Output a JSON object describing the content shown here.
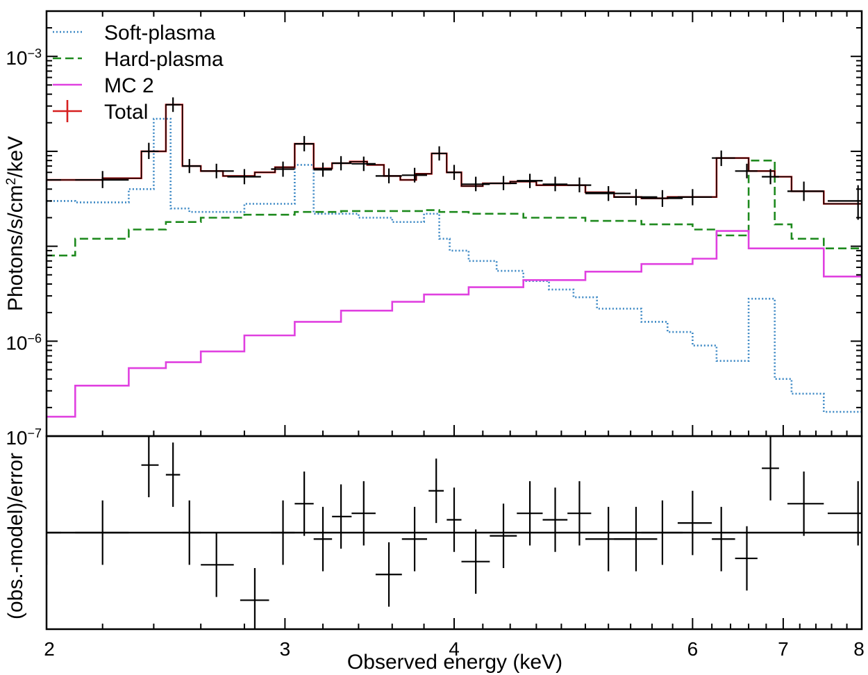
{
  "chart_data": {
    "type": "line",
    "xlabel": "Observed energy (keV)",
    "x_ticks": [
      2,
      3,
      4,
      6,
      7,
      8
    ],
    "x_tick_labels": [
      "2",
      "3",
      "4",
      "6",
      "7",
      "8"
    ],
    "xlim": [
      2,
      8
    ],
    "top_panel": {
      "ylabel_prefix": "Photons/s/cm",
      "ylabel_sup": "2",
      "ylabel_suffix": "/keV",
      "yscale": "log",
      "ylim": [
        1e-07,
        0.003
      ],
      "y_ticks": [
        {
          "value": 0.001,
          "base": "10",
          "exp": "−3"
        },
        {
          "value": 1e-06,
          "base": "10",
          "exp": "−6"
        },
        {
          "value": 1e-07,
          "base": "10",
          "exp": "−7"
        }
      ],
      "legend": [
        {
          "label": "Soft-plasma",
          "key": "soft"
        },
        {
          "label": "Hard-plasma",
          "key": "hard"
        },
        {
          "label": "MC 2",
          "key": "mc"
        },
        {
          "label": "Total",
          "key": "total"
        }
      ],
      "series": [
        {
          "name": "Soft-plasma",
          "color": "#3a87c4",
          "style": "dotted",
          "steps": [
            [
              2.0,
              2.1,
              3e-05
            ],
            [
              2.1,
              2.3,
              2.9e-05
            ],
            [
              2.3,
              2.4,
              4e-05
            ],
            [
              2.4,
              2.47,
              0.00022
            ],
            [
              2.47,
              2.55,
              2.5e-05
            ],
            [
              2.55,
              2.8,
              2.3e-05
            ],
            [
              2.8,
              3.05,
              2.8e-05
            ],
            [
              3.05,
              3.15,
              7.2e-05
            ],
            [
              3.15,
              3.4,
              2.2e-05
            ],
            [
              3.4,
              3.6,
              2e-05
            ],
            [
              3.6,
              3.8,
              1.8e-05
            ],
            [
              3.8,
              3.9,
              2.2e-05
            ],
            [
              3.9,
              3.97,
              1.2e-05
            ],
            [
              3.97,
              4.1,
              9e-06
            ],
            [
              4.1,
              4.3,
              7e-06
            ],
            [
              4.3,
              4.5,
              5.5e-06
            ],
            [
              4.5,
              4.7,
              4.3e-06
            ],
            [
              4.7,
              4.9,
              3.5e-06
            ],
            [
              4.9,
              5.1,
              2.9e-06
            ],
            [
              5.1,
              5.5,
              2.2e-06
            ],
            [
              5.5,
              5.75,
              1.6e-06
            ],
            [
              5.75,
              6.0,
              1.25e-06
            ],
            [
              6.0,
              6.25,
              9e-07
            ],
            [
              6.25,
              6.6,
              6.2e-07
            ],
            [
              6.6,
              6.9,
              2.8e-06
            ],
            [
              6.9,
              7.1,
              4e-07
            ],
            [
              7.1,
              7.5,
              2.8e-07
            ],
            [
              7.5,
              8.0,
              1.8e-07
            ]
          ]
        },
        {
          "name": "Hard-plasma",
          "color": "#1e8a1e",
          "style": "dashed",
          "steps": [
            [
              2.0,
              2.1,
              8e-06
            ],
            [
              2.1,
              2.3,
              1.2e-05
            ],
            [
              2.3,
              2.45,
              1.5e-05
            ],
            [
              2.45,
              2.6,
              1.8e-05
            ],
            [
              2.6,
              2.8,
              2e-05
            ],
            [
              2.8,
              3.05,
              2.15e-05
            ],
            [
              3.05,
              3.3,
              2.3e-05
            ],
            [
              3.3,
              3.6,
              2.35e-05
            ],
            [
              3.6,
              3.8,
              2.35e-05
            ],
            [
              3.8,
              3.9,
              2.4e-05
            ],
            [
              3.9,
              4.1,
              2.3e-05
            ],
            [
              4.1,
              4.5,
              2.2e-05
            ],
            [
              4.5,
              5.0,
              2e-05
            ],
            [
              5.0,
              5.5,
              1.85e-05
            ],
            [
              5.5,
              6.0,
              1.7e-05
            ],
            [
              6.0,
              6.25,
              1.5e-05
            ],
            [
              6.25,
              6.6,
              1.3e-05
            ],
            [
              6.6,
              6.9,
              8e-05
            ],
            [
              6.9,
              7.1,
              1.7e-05
            ],
            [
              7.1,
              7.5,
              1.2e-05
            ],
            [
              7.5,
              8.0,
              9.5e-06
            ]
          ]
        },
        {
          "name": "MC 2",
          "color": "#e040e0",
          "style": "solid",
          "steps": [
            [
              2.0,
              2.1,
              1.6e-07
            ],
            [
              2.1,
              2.3,
              3.4e-07
            ],
            [
              2.3,
              2.45,
              5.2e-07
            ],
            [
              2.45,
              2.6,
              6e-07
            ],
            [
              2.6,
              2.8,
              7.8e-07
            ],
            [
              2.8,
              3.05,
              1.15e-06
            ],
            [
              3.05,
              3.3,
              1.6e-06
            ],
            [
              3.3,
              3.6,
              2.1e-06
            ],
            [
              3.6,
              3.8,
              2.6e-06
            ],
            [
              3.8,
              4.1,
              3.1e-06
            ],
            [
              4.1,
              4.5,
              3.7e-06
            ],
            [
              4.5,
              5.0,
              4.4e-06
            ],
            [
              5.0,
              5.5,
              5.4e-06
            ],
            [
              5.5,
              6.0,
              6.5e-06
            ],
            [
              6.0,
              6.25,
              7.4e-06
            ],
            [
              6.25,
              6.6,
              1.45e-05
            ],
            [
              6.6,
              7.1,
              9.5e-06
            ],
            [
              7.1,
              7.5,
              9.5e-06
            ],
            [
              7.5,
              8.0,
              4.8e-06
            ]
          ]
        },
        {
          "name": "Total",
          "color": "#d61f1f",
          "style": "solid",
          "steps": [
            [
              2.0,
              2.2,
              5e-05
            ],
            [
              2.2,
              2.35,
              5.2e-05
            ],
            [
              2.35,
              2.45,
              0.0001
            ],
            [
              2.45,
              2.52,
              0.00031
            ],
            [
              2.52,
              2.6,
              7e-05
            ],
            [
              2.6,
              2.7,
              6.2e-05
            ],
            [
              2.7,
              2.85,
              5.5e-05
            ],
            [
              2.85,
              2.95,
              6e-05
            ],
            [
              2.95,
              3.05,
              6.8e-05
            ],
            [
              3.05,
              3.15,
              0.00012
            ],
            [
              3.15,
              3.25,
              6.6e-05
            ],
            [
              3.25,
              3.35,
              7.5e-05
            ],
            [
              3.35,
              3.45,
              7.8e-05
            ],
            [
              3.45,
              3.55,
              7.2e-05
            ],
            [
              3.55,
              3.65,
              5.5e-05
            ],
            [
              3.65,
              3.75,
              5e-05
            ],
            [
              3.75,
              3.85,
              5.8e-05
            ],
            [
              3.85,
              3.95,
              9.5e-05
            ],
            [
              3.95,
              4.05,
              6e-05
            ],
            [
              4.05,
              4.2,
              4.3e-05
            ],
            [
              4.2,
              4.4,
              4.6e-05
            ],
            [
              4.4,
              4.6,
              4.8e-05
            ],
            [
              4.6,
              4.8,
              4.4e-05
            ],
            [
              4.8,
              5.0,
              4.4e-05
            ],
            [
              5.0,
              5.25,
              3.7e-05
            ],
            [
              5.25,
              5.5,
              3.3e-05
            ],
            [
              5.5,
              5.75,
              3.2e-05
            ],
            [
              5.75,
              6.0,
              3.3e-05
            ],
            [
              6.0,
              6.25,
              3.3e-05
            ],
            [
              6.25,
              6.6,
              8.5e-05
            ],
            [
              6.6,
              6.9,
              6.2e-05
            ],
            [
              6.9,
              7.1,
              5.4e-05
            ],
            [
              7.1,
              7.5,
              3.8e-05
            ],
            [
              7.5,
              8.0,
              2.8e-05
            ]
          ]
        }
      ],
      "data_points": [
        {
          "x": 2.0,
          "xlo": 1.92,
          "xhi": 2.05,
          "y": 5e-05,
          "ylo": 4.2e-05,
          "yhi": 5.9e-05
        },
        {
          "x": 2.2,
          "xlo": 2.1,
          "xhi": 2.3,
          "y": 5e-05,
          "ylo": 4.1e-05,
          "yhi": 6.2e-05
        },
        {
          "x": 2.38,
          "xlo": 2.35,
          "xhi": 2.42,
          "y": 0.0001,
          "ylo": 8.3e-05,
          "yhi": 0.000123
        },
        {
          "x": 2.48,
          "xlo": 2.45,
          "xhi": 2.51,
          "y": 0.00031,
          "ylo": 0.00026,
          "yhi": 0.00037
        },
        {
          "x": 2.55,
          "xlo": 2.52,
          "xhi": 2.6,
          "y": 7e-05,
          "ylo": 5.9e-05,
          "yhi": 8.3e-05
        },
        {
          "x": 2.67,
          "xlo": 2.6,
          "xhi": 2.75,
          "y": 6.2e-05,
          "ylo": 5.2e-05,
          "yhi": 7.4e-05
        },
        {
          "x": 2.8,
          "xlo": 2.72,
          "xhi": 2.88,
          "y": 5.4e-05,
          "ylo": 4.5e-05,
          "yhi": 6.5e-05
        },
        {
          "x": 2.99,
          "xlo": 2.93,
          "xhi": 3.05,
          "y": 6.5e-05,
          "ylo": 5.4e-05,
          "yhi": 7.8e-05
        },
        {
          "x": 3.1,
          "xlo": 3.05,
          "xhi": 3.15,
          "y": 0.00012,
          "ylo": 0.0001,
          "yhi": 0.000145
        },
        {
          "x": 3.2,
          "xlo": 3.15,
          "xhi": 3.25,
          "y": 6.4e-05,
          "ylo": 5.4e-05,
          "yhi": 7.6e-05
        },
        {
          "x": 3.3,
          "xlo": 3.25,
          "xhi": 3.36,
          "y": 7.5e-05,
          "ylo": 6.3e-05,
          "yhi": 8.9e-05
        },
        {
          "x": 3.43,
          "xlo": 3.36,
          "xhi": 3.5,
          "y": 7.4e-05,
          "ylo": 6.2e-05,
          "yhi": 8.8e-05
        },
        {
          "x": 3.58,
          "xlo": 3.5,
          "xhi": 3.66,
          "y": 5.5e-05,
          "ylo": 4.6e-05,
          "yhi": 6.6e-05
        },
        {
          "x": 3.74,
          "xlo": 3.66,
          "xhi": 3.82,
          "y": 5.6e-05,
          "ylo": 4.7e-05,
          "yhi": 6.7e-05
        },
        {
          "x": 3.9,
          "xlo": 3.85,
          "xhi": 3.95,
          "y": 9.5e-05,
          "ylo": 8e-05,
          "yhi": 0.000113
        },
        {
          "x": 4.0,
          "xlo": 3.95,
          "xhi": 4.05,
          "y": 6e-05,
          "ylo": 5e-05,
          "yhi": 7.2e-05
        },
        {
          "x": 4.15,
          "xlo": 4.05,
          "xhi": 4.25,
          "y": 4.5e-05,
          "ylo": 3.8e-05,
          "yhi": 5.4e-05
        },
        {
          "x": 4.35,
          "xlo": 4.25,
          "xhi": 4.45,
          "y": 4.6e-05,
          "ylo": 3.9e-05,
          "yhi": 5.5e-05
        },
        {
          "x": 4.55,
          "xlo": 4.45,
          "xhi": 4.65,
          "y": 4.9e-05,
          "ylo": 4.1e-05,
          "yhi": 5.8e-05
        },
        {
          "x": 4.75,
          "xlo": 4.65,
          "xhi": 4.85,
          "y": 4.5e-05,
          "ylo": 3.8e-05,
          "yhi": 5.4e-05
        },
        {
          "x": 4.95,
          "xlo": 4.85,
          "xhi": 5.05,
          "y": 4.4e-05,
          "ylo": 3.7e-05,
          "yhi": 5.3e-05
        },
        {
          "x": 5.2,
          "xlo": 5.0,
          "xhi": 5.4,
          "y": 3.6e-05,
          "ylo": 3e-05,
          "yhi": 4.3e-05
        },
        {
          "x": 5.45,
          "xlo": 5.25,
          "xhi": 5.65,
          "y": 3.3e-05,
          "ylo": 2.7e-05,
          "yhi": 4e-05
        },
        {
          "x": 5.7,
          "xlo": 5.5,
          "xhi": 5.9,
          "y": 3.2e-05,
          "ylo": 2.6e-05,
          "yhi": 3.9e-05
        },
        {
          "x": 6.0,
          "xlo": 5.85,
          "xhi": 6.2,
          "y": 3.3e-05,
          "ylo": 2.7e-05,
          "yhi": 4e-05
        },
        {
          "x": 6.3,
          "xlo": 6.2,
          "xhi": 6.45,
          "y": 8.5e-05,
          "ylo": 7e-05,
          "yhi": 0.000102
        },
        {
          "x": 6.58,
          "xlo": 6.45,
          "xhi": 6.7,
          "y": 6.2e-05,
          "ylo": 5.2e-05,
          "yhi": 7.4e-05
        },
        {
          "x": 6.85,
          "xlo": 6.75,
          "xhi": 6.95,
          "y": 5.4e-05,
          "ylo": 4.5e-05,
          "yhi": 6.5e-05
        },
        {
          "x": 7.25,
          "xlo": 7.05,
          "xhi": 7.5,
          "y": 3.8e-05,
          "ylo": 3e-05,
          "yhi": 4.8e-05
        },
        {
          "x": 7.95,
          "xlo": 7.55,
          "xhi": 8.0,
          "y": 3e-05,
          "ylo": 1.9e-05,
          "yhi": 4.4e-05
        }
      ]
    },
    "bottom_panel": {
      "ylabel": "(obs.-model)/error",
      "ylim": [
        -3.0,
        3.0
      ],
      "zero_line": 0,
      "residuals": [
        {
          "x": 2.0,
          "xlo": 1.95,
          "xhi": 2.05,
          "y": 0.0,
          "err": 1.0
        },
        {
          "x": 2.2,
          "xlo": 2.1,
          "xhi": 2.3,
          "y": 0.0,
          "err": 1.0
        },
        {
          "x": 2.38,
          "xlo": 2.35,
          "xhi": 2.42,
          "y": 2.1,
          "err": 1.0
        },
        {
          "x": 2.48,
          "xlo": 2.45,
          "xhi": 2.51,
          "y": 1.8,
          "err": 1.0
        },
        {
          "x": 2.55,
          "xlo": 2.52,
          "xhi": 2.6,
          "y": 0.0,
          "err": 1.0
        },
        {
          "x": 2.67,
          "xlo": 2.6,
          "xhi": 2.75,
          "y": -1.0,
          "err": 1.0
        },
        {
          "x": 2.85,
          "xlo": 2.78,
          "xhi": 2.92,
          "y": -2.1,
          "err": 1.0
        },
        {
          "x": 2.99,
          "xlo": 2.93,
          "xhi": 3.05,
          "y": 0.0,
          "err": 1.0
        },
        {
          "x": 3.1,
          "xlo": 3.05,
          "xhi": 3.15,
          "y": 0.9,
          "err": 1.0
        },
        {
          "x": 3.2,
          "xlo": 3.15,
          "xhi": 3.25,
          "y": -0.2,
          "err": 1.0
        },
        {
          "x": 3.3,
          "xlo": 3.25,
          "xhi": 3.36,
          "y": 0.5,
          "err": 1.0
        },
        {
          "x": 3.43,
          "xlo": 3.36,
          "xhi": 3.5,
          "y": 0.6,
          "err": 1.0
        },
        {
          "x": 3.58,
          "xlo": 3.5,
          "xhi": 3.66,
          "y": -1.3,
          "err": 1.0
        },
        {
          "x": 3.74,
          "xlo": 3.66,
          "xhi": 3.82,
          "y": -0.2,
          "err": 1.0
        },
        {
          "x": 3.88,
          "xlo": 3.83,
          "xhi": 3.93,
          "y": 1.3,
          "err": 1.0
        },
        {
          "x": 4.0,
          "xlo": 3.95,
          "xhi": 4.05,
          "y": 0.4,
          "err": 1.0
        },
        {
          "x": 4.15,
          "xlo": 4.05,
          "xhi": 4.25,
          "y": -0.9,
          "err": 1.0
        },
        {
          "x": 4.35,
          "xlo": 4.25,
          "xhi": 4.45,
          "y": -0.1,
          "err": 1.0
        },
        {
          "x": 4.55,
          "xlo": 4.45,
          "xhi": 4.65,
          "y": 0.6,
          "err": 1.0
        },
        {
          "x": 4.75,
          "xlo": 4.65,
          "xhi": 4.85,
          "y": 0.4,
          "err": 1.0
        },
        {
          "x": 4.95,
          "xlo": 4.85,
          "xhi": 5.05,
          "y": 0.6,
          "err": 1.0
        },
        {
          "x": 5.2,
          "xlo": 5.0,
          "xhi": 5.4,
          "y": -0.2,
          "err": 1.0
        },
        {
          "x": 5.45,
          "xlo": 5.25,
          "xhi": 5.65,
          "y": -0.2,
          "err": 1.0
        },
        {
          "x": 5.7,
          "xlo": 5.5,
          "xhi": 5.9,
          "y": 0.0,
          "err": 1.0
        },
        {
          "x": 6.0,
          "xlo": 5.85,
          "xhi": 6.2,
          "y": 0.3,
          "err": 1.0
        },
        {
          "x": 6.3,
          "xlo": 6.2,
          "xhi": 6.45,
          "y": -0.2,
          "err": 1.0
        },
        {
          "x": 6.58,
          "xlo": 6.45,
          "xhi": 6.7,
          "y": -0.8,
          "err": 1.0
        },
        {
          "x": 6.85,
          "xlo": 6.75,
          "xhi": 6.95,
          "y": 2.0,
          "err": 1.0
        },
        {
          "x": 7.25,
          "xlo": 7.05,
          "xhi": 7.5,
          "y": 0.9,
          "err": 1.0
        },
        {
          "x": 7.95,
          "xlo": 7.55,
          "xhi": 8.0,
          "y": 0.6,
          "err": 1.0
        }
      ]
    }
  }
}
